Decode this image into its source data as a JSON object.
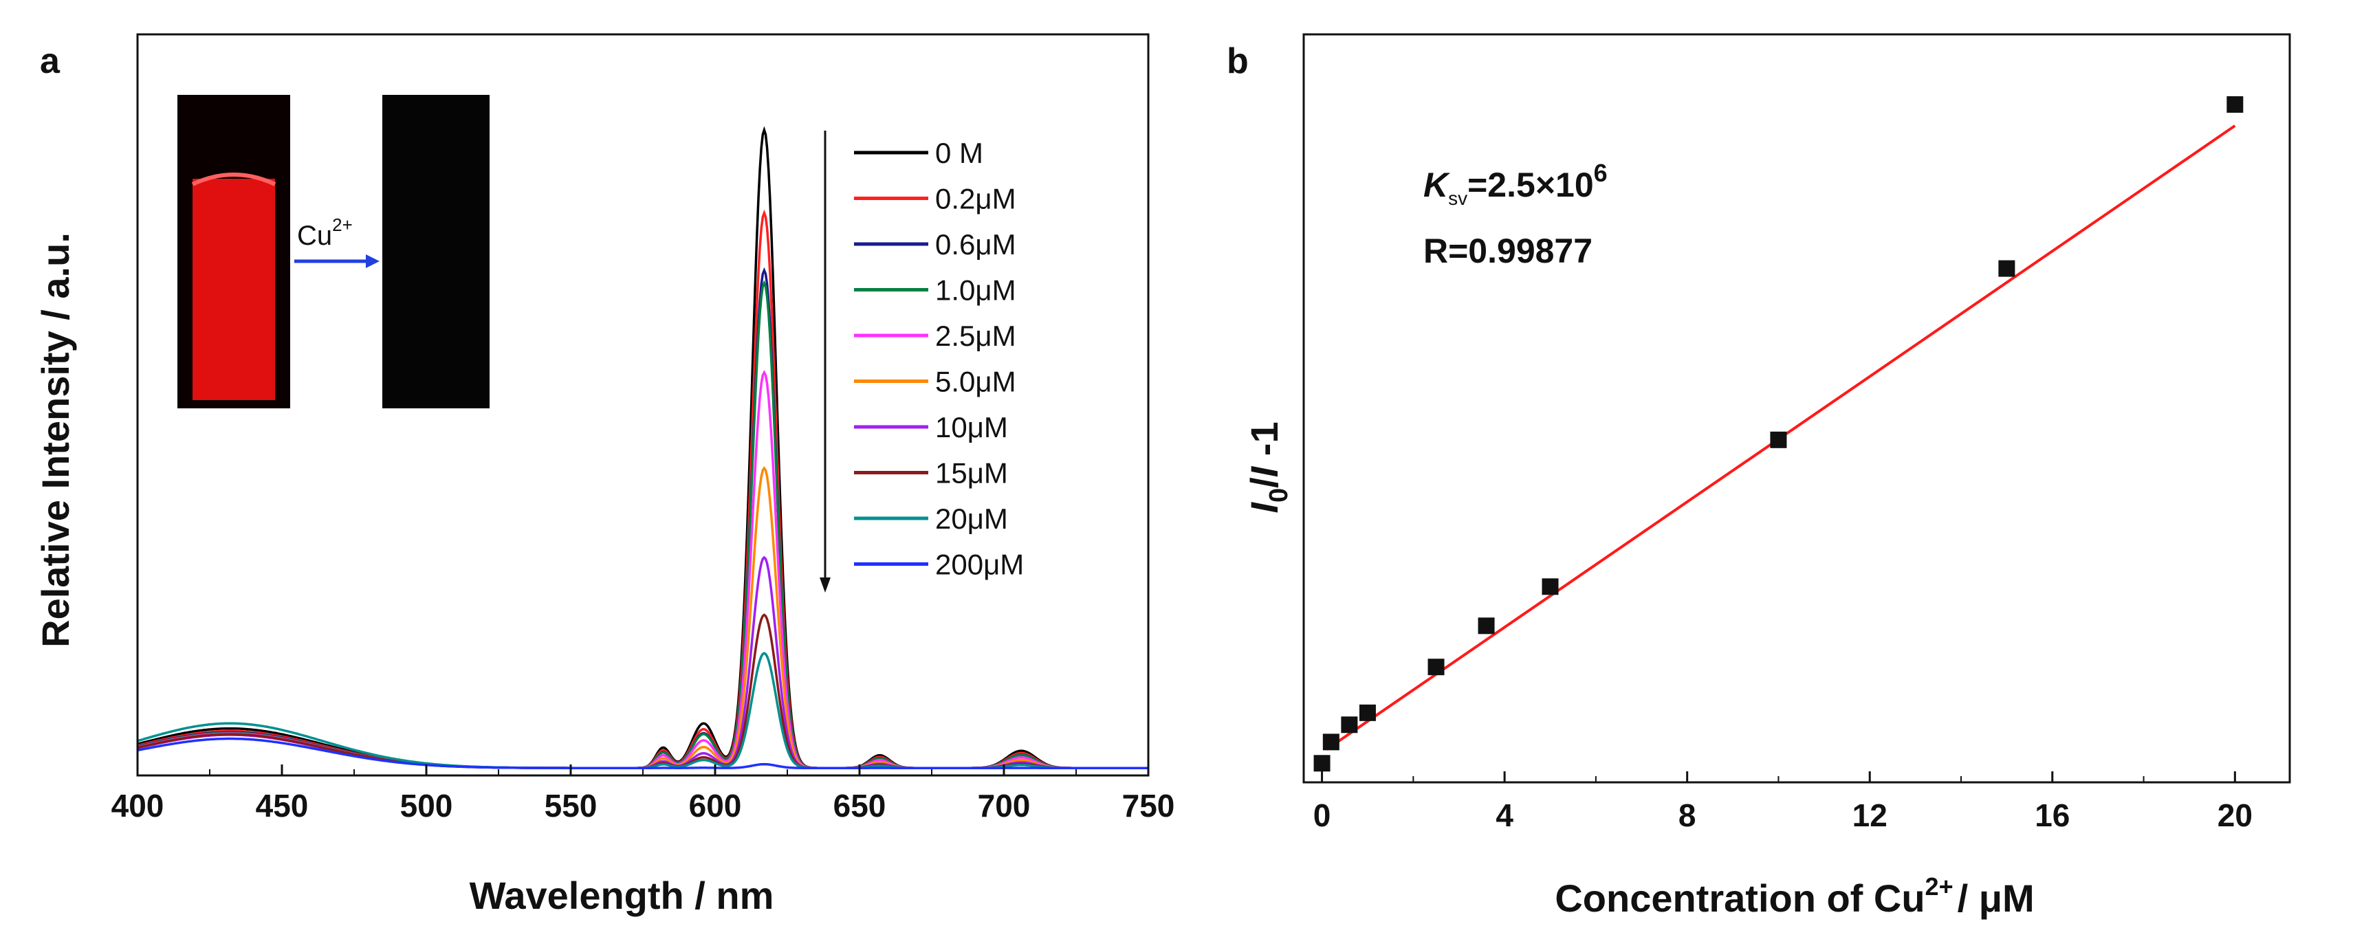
{
  "figure": {
    "panel_a_letter": "a",
    "panel_b_letter": "b"
  },
  "inset": {
    "arrow_label_base": "Cu",
    "arrow_label_sup": "2+",
    "colors": {
      "before": "#e01010",
      "after": "#050505",
      "arrow": "#2040e0"
    }
  },
  "chart_data": [
    {
      "id": "a",
      "type": "line",
      "title": "",
      "xlabel": "Wavelength / nm",
      "ylabel": "Relative Intensity / a.u.",
      "xlim": [
        400,
        750
      ],
      "ylim": [
        0,
        100
      ],
      "xticks": [
        400,
        450,
        500,
        550,
        600,
        650,
        700,
        750
      ],
      "grid": false,
      "legend_position": "top-right",
      "peaks": {
        "broad_center": 432,
        "shoulder1": 582,
        "shoulder2": 596,
        "main": 617,
        "minor1": 657,
        "minor2": 706
      },
      "series": [
        {
          "name": "0 M",
          "color": "#000000",
          "main_peak": 100,
          "broad": 6.2
        },
        {
          "name": "0.2μM",
          "color": "#ff2020",
          "main_peak": 87,
          "broad": 5.8
        },
        {
          "name": "0.6μM",
          "color": "#1a1a90",
          "main_peak": 78,
          "broad": 5.6
        },
        {
          "name": "1.0μM",
          "color": "#008040",
          "main_peak": 76,
          "broad": 5.5
        },
        {
          "name": "2.5μM",
          "color": "#ff30ff",
          "main_peak": 62,
          "broad": 5.4
        },
        {
          "name": "5.0μM",
          "color": "#ff8800",
          "main_peak": 47,
          "broad": 5.3
        },
        {
          "name": "10μM",
          "color": "#a020f0",
          "main_peak": 33,
          "broad": 5.2
        },
        {
          "name": "15μM",
          "color": "#8b1a1a",
          "main_peak": 24,
          "broad": 5.3
        },
        {
          "name": "20μM",
          "color": "#009090",
          "main_peak": 18,
          "broad": 7.0
        },
        {
          "name": "200μM",
          "color": "#2030ff",
          "main_peak": 0.6,
          "broad": 4.6
        }
      ]
    },
    {
      "id": "b",
      "type": "scatter",
      "title": "",
      "xlabel": "Concentration of Cu",
      "xlabel_sup": "2+",
      "xlabel_unit": "/ μM",
      "ylabel_I0": "I",
      "ylabel_sub": "0",
      "ylabel_rest": "/",
      "ylabel_I": "I",
      "ylabel_tail": " -1",
      "xlim": [
        -0.4,
        21.2
      ],
      "ylim": [
        0,
        100
      ],
      "xticks": [
        0,
        4,
        8,
        12,
        16,
        20
      ],
      "grid": false,
      "annotations": {
        "ksv_K": "K",
        "ksv_sub": "sv",
        "ksv_value": "=2.5×10",
        "ksv_exp": "6",
        "r_value": "R=0.99877"
      },
      "marker_color": "#111111",
      "fit_color": "#ff1a1a",
      "fit": {
        "slope": 4.72,
        "intercept": 2.4
      },
      "points": [
        {
          "x": 0.0,
          "y": 0.8
        },
        {
          "x": 0.2,
          "y": 4.0
        },
        {
          "x": 0.6,
          "y": 6.6
        },
        {
          "x": 1.0,
          "y": 8.4
        },
        {
          "x": 2.5,
          "y": 15.3
        },
        {
          "x": 3.6,
          "y": 21.5
        },
        {
          "x": 5.0,
          "y": 27.4
        },
        {
          "x": 10.0,
          "y": 49.5
        },
        {
          "x": 15.0,
          "y": 75.3
        },
        {
          "x": 20.0,
          "y": 100.0
        }
      ]
    }
  ]
}
